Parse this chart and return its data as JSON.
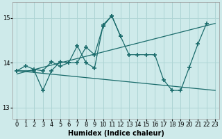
{
  "xlabel": "Humidex (Indice chaleur)",
  "xlim": [
    -0.5,
    23.5
  ],
  "ylim": [
    12.75,
    15.35
  ],
  "yticks": [
    13,
    14,
    15
  ],
  "xticks": [
    0,
    1,
    2,
    3,
    4,
    5,
    6,
    7,
    8,
    9,
    10,
    11,
    12,
    13,
    14,
    15,
    16,
    17,
    18,
    19,
    20,
    21,
    22,
    23
  ],
  "bg_color": "#ceeaea",
  "grid_color": "#add4d4",
  "line_color": "#1a6b6b",
  "line1_x": [
    0,
    1,
    2,
    3,
    4,
    5,
    6,
    7,
    8,
    9,
    10,
    11,
    12,
    13,
    14,
    15,
    16,
    17,
    18,
    19,
    20,
    21,
    22
  ],
  "line1_y": [
    13.82,
    13.93,
    13.85,
    13.82,
    14.02,
    13.92,
    14.0,
    14.38,
    14.0,
    13.88,
    14.85,
    15.05,
    14.6,
    14.18,
    14.18,
    14.18,
    14.18,
    13.62,
    13.38,
    13.38,
    13.9,
    14.42,
    14.88
  ],
  "line2_x": [
    0,
    2,
    3,
    4,
    5,
    6,
    7,
    8,
    9,
    10,
    11,
    12
  ],
  "line2_y": [
    13.82,
    13.82,
    13.38,
    13.82,
    14.02,
    14.0,
    14.0,
    14.35,
    14.18,
    14.82,
    15.05,
    14.6
  ],
  "line3_x": [
    0,
    23
  ],
  "line3_y": [
    13.75,
    14.88
  ],
  "line4_x": [
    0,
    23
  ],
  "line4_y": [
    13.82,
    13.38
  ]
}
